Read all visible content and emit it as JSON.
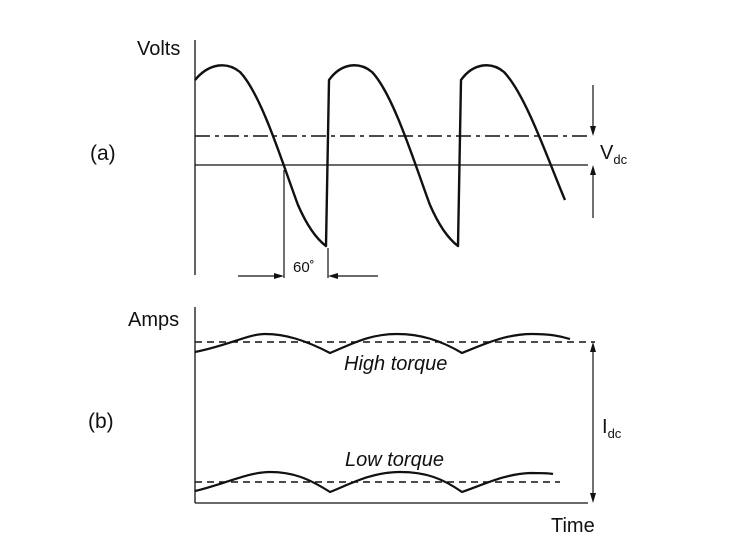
{
  "panel_a": {
    "tag": "(a)",
    "y_axis_label": "Volts",
    "dc_label_main": "V",
    "dc_label_sub": "dc",
    "angle_label": "60˚"
  },
  "panel_b": {
    "tag": "(b)",
    "y_axis_label": "Amps",
    "x_axis_label": "Time",
    "high_curve_label": "High torque",
    "low_curve_label": "Low torque",
    "dc_label_main": "I",
    "dc_label_sub": "dc"
  },
  "colors": {
    "ink": "#111111",
    "background": "#ffffff"
  }
}
